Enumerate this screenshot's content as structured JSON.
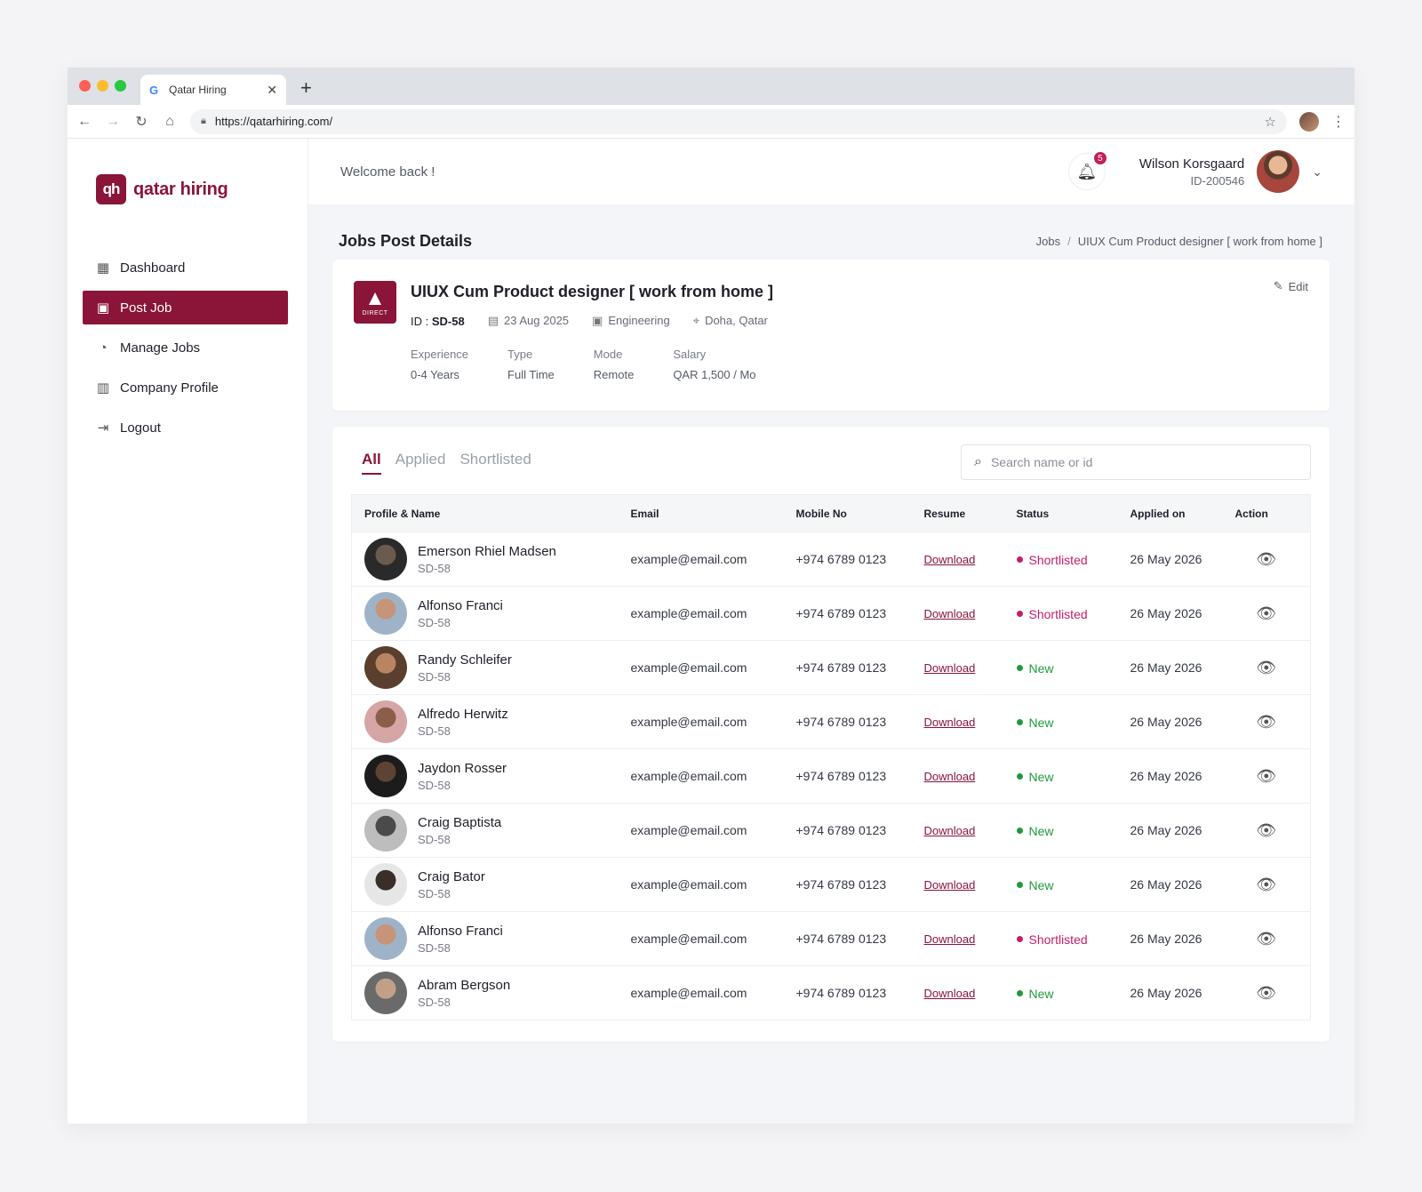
{
  "browser": {
    "tab_title": "Qatar Hiring",
    "tab_favicon": "G",
    "url": "https://qatarhiring.com/"
  },
  "brand": {
    "name": "qatar hiring",
    "mark": "qh",
    "color": "#8a1538"
  },
  "sidebar": {
    "items": [
      {
        "label": "Dashboard",
        "icon": "grid-icon"
      },
      {
        "label": "Post Job",
        "icon": "briefcase-icon",
        "active": true
      },
      {
        "label": "Manage Jobs",
        "icon": "pie-chart-icon"
      },
      {
        "label": "Company Profile",
        "icon": "building-icon"
      },
      {
        "label": "Logout",
        "icon": "logout-icon"
      }
    ]
  },
  "topbar": {
    "welcome": "Welcome back !",
    "notifications": "5",
    "user_name": "Wilson Korsgaard",
    "user_id": "ID-200546"
  },
  "page": {
    "title": "Jobs Post Details",
    "breadcrumb": [
      "Jobs",
      "/",
      "UIUX Cum Product designer [ work from home ]"
    ]
  },
  "job": {
    "logo_text": "DIRECT",
    "title": "UIUX Cum Product designer [ work from home ]",
    "id_label": "ID :",
    "id_value": "SD-58",
    "date": "23 Aug 2025",
    "department": "Engineering",
    "location": "Doha, Qatar",
    "edit_label": "Edit",
    "specs": [
      {
        "label": "Experience",
        "value": "0-4 Years"
      },
      {
        "label": "Type",
        "value": "Full Time"
      },
      {
        "label": "Mode",
        "value": "Remote"
      },
      {
        "label": "Salary",
        "value": "QAR 1,500 / Mo"
      }
    ]
  },
  "filters": {
    "tabs": [
      "All",
      "Applied",
      "Shortlisted"
    ],
    "active_tab": "All",
    "search_placeholder": "Search name or id"
  },
  "table": {
    "headers": [
      "Profile & Name",
      "Email",
      "Mobile No",
      "Resume",
      "Status",
      "Applied on",
      "Action"
    ],
    "rows": [
      {
        "name": "Emerson Rhiel Madsen",
        "id": "SD-58",
        "email": "example@email.com",
        "mobile": "+974 6789 0123",
        "resume": "Download",
        "status": "Shortlisted",
        "applied": "26 May 2026"
      },
      {
        "name": "Alfonso Franci",
        "id": "SD-58",
        "email": "example@email.com",
        "mobile": "+974 6789 0123",
        "resume": "Download",
        "status": "Shortlisted",
        "applied": "26 May 2026"
      },
      {
        "name": "Randy Schleifer",
        "id": "SD-58",
        "email": "example@email.com",
        "mobile": "+974 6789 0123",
        "resume": "Download",
        "status": "New",
        "applied": "26 May 2026"
      },
      {
        "name": "Alfredo Herwitz",
        "id": "SD-58",
        "email": "example@email.com",
        "mobile": "+974 6789 0123",
        "resume": "Download",
        "status": "New",
        "applied": "26 May 2026"
      },
      {
        "name": "Jaydon Rosser",
        "id": "SD-58",
        "email": "example@email.com",
        "mobile": "+974 6789 0123",
        "resume": "Download",
        "status": "New",
        "applied": "26 May 2026"
      },
      {
        "name": "Craig Baptista",
        "id": "SD-58",
        "email": "example@email.com",
        "mobile": "+974 6789 0123",
        "resume": "Download",
        "status": "New",
        "applied": "26 May 2026"
      },
      {
        "name": "Craig Bator",
        "id": "SD-58",
        "email": "example@email.com",
        "mobile": "+974 6789 0123",
        "resume": "Download",
        "status": "New",
        "applied": "26 May 2026"
      },
      {
        "name": "Alfonso Franci",
        "id": "SD-58",
        "email": "example@email.com",
        "mobile": "+974 6789 0123",
        "resume": "Download",
        "status": "Shortlisted",
        "applied": "26 May 2026"
      },
      {
        "name": "Abram Bergson",
        "id": "SD-58",
        "email": "example@email.com",
        "mobile": "+974 6789 0123",
        "resume": "Download",
        "status": "New",
        "applied": "26 May 2026"
      }
    ]
  },
  "colors": {
    "primary": "#8a1538",
    "shortlisted": "#c41e68",
    "new": "#1e9a3e"
  }
}
